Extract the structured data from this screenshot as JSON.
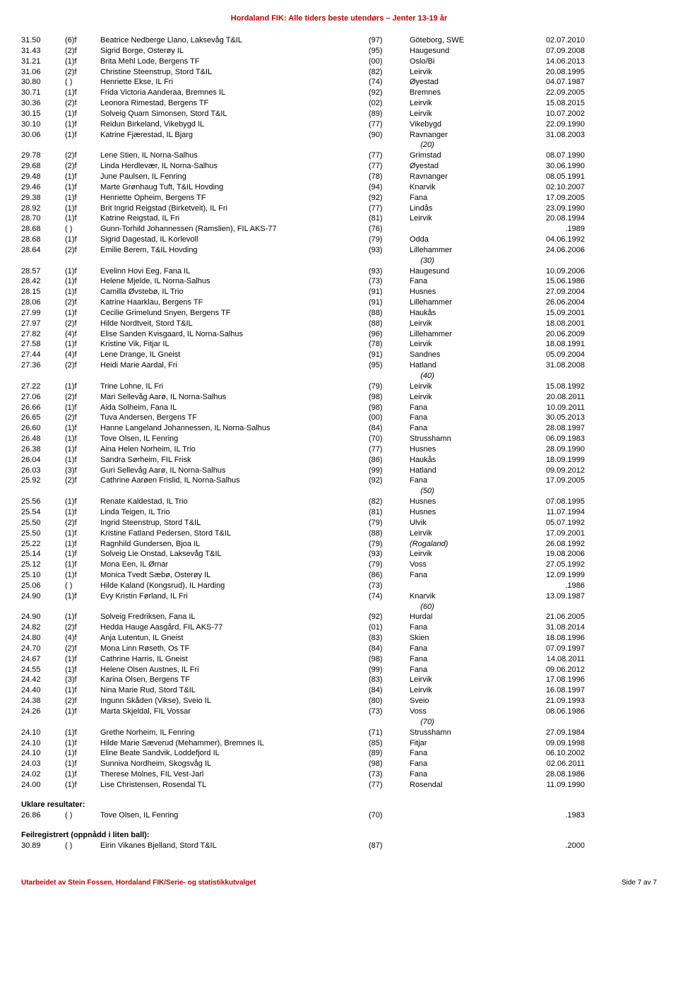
{
  "header": "Hordaland FIK: Alle tiders beste utendørs – Jenter 13-19 år",
  "footer_left": "Utarbeidet av Stein Fossen, Hordaland FIK/Serie- og statistikkutvalget",
  "footer_right": "Side 7 av 7",
  "sections": {
    "unclear": {
      "title": "Uklare resultater:"
    },
    "misreg": {
      "title": "Feilregistrert (oppnådd i liten ball):"
    }
  },
  "rows": [
    {
      "r": "31.50",
      "a": "(6)f",
      "n": "Beatrice Nedberge Llano, Laksevåg T&IL",
      "y": "(97)",
      "p": "Göteborg, SWE",
      "d": "02.07.2010"
    },
    {
      "r": "31.43",
      "a": "(2)f",
      "n": "Sigrid Borge, Osterøy IL",
      "y": "(95)",
      "p": "Haugesund",
      "d": "07.09.2008"
    },
    {
      "r": "31.21",
      "a": "(1)f",
      "n": "Brita Mehl Lode, Bergens TF",
      "y": "(00)",
      "p": "Oslo/Bi",
      "d": "14.06.2013"
    },
    {
      "r": "31.06",
      "a": "(2)f",
      "n": "Christine Steenstrup, Stord T&IL",
      "y": "(82)",
      "p": "Leirvik",
      "d": "20.08.1995"
    },
    {
      "r": "30.80",
      "a": "( )",
      "n": "Henriette Ekse, IL Fri",
      "y": "(74)",
      "p": "Øyestad",
      "d": "04.07.1987"
    },
    {
      "r": "30.71",
      "a": "(1)f",
      "n": "Frida Victoria Aanderaa, Bremnes IL",
      "y": "(92)",
      "p": "Bremnes",
      "d": "22.09.2005"
    },
    {
      "r": "30.36",
      "a": "(2)f",
      "n": "Leonora Rimestad, Bergens TF",
      "y": "(02)",
      "p": "Leirvik",
      "d": "15.08.2015"
    },
    {
      "r": "30.15",
      "a": "(1)f",
      "n": "Solveig Quam Simonsen, Stord T&IL",
      "y": "(89)",
      "p": "Leirvik",
      "d": "10.07.2002"
    },
    {
      "r": "30.10",
      "a": "(1)f",
      "n": "Reidun Birkeland, Vikebygd IL",
      "y": "(77)",
      "p": "Vikebygd",
      "d": "22.09.1990"
    },
    {
      "r": "30.06",
      "a": "(1)f",
      "n": "Katrine Fjærestad, IL Bjarg",
      "y": "(90)",
      "p": "Ravnanger",
      "d": "31.08.2003"
    },
    {
      "marker": "(20)"
    },
    {
      "r": "29.78",
      "a": "(2)f",
      "n": "Lene Stien, IL Norna-Salhus",
      "y": "(77)",
      "p": "Grimstad",
      "d": "08.07.1990"
    },
    {
      "r": "29.68",
      "a": "(2)f",
      "n": "Linda Herdlevær, IL Norna-Salhus",
      "y": "(77)",
      "p": "Øyestad",
      "d": "30.06.1990"
    },
    {
      "r": "29.48",
      "a": "(1)f",
      "n": "June Paulsen, IL Fenring",
      "y": "(78)",
      "p": "Ravnanger",
      "d": "08.05.1991"
    },
    {
      "r": "29.46",
      "a": "(1)f",
      "n": "Marte Grønhaug Tuft, T&IL Hovding",
      "y": "(94)",
      "p": "Knarvik",
      "d": "02.10.2007"
    },
    {
      "r": "29.38",
      "a": "(1)f",
      "n": "Henriette Opheim, Bergens TF",
      "y": "(92)",
      "p": "Fana",
      "d": "17.09.2005"
    },
    {
      "r": "28.92",
      "a": "(1)f",
      "n": "Brit Ingrid Reigstad (Birketveit), IL Fri",
      "y": "(77)",
      "p": "Lindås",
      "d": "23.09.1990"
    },
    {
      "r": "28.70",
      "a": "(1)f",
      "n": "Katrine Reigstad, IL Fri",
      "y": "(81)",
      "p": "Leirvik",
      "d": "20.08.1994"
    },
    {
      "r": "28.68",
      "a": "( )",
      "n": "Gunn-Torhild Johannessen (Ramslien), FIL AKS-77",
      "y": "(76)",
      "p": "",
      "d": ".1989"
    },
    {
      "r": "28.68",
      "a": "(1)f",
      "n": "Sigrid Dagestad, IL Korlevoll",
      "y": "(79)",
      "p": "Odda",
      "d": "04.06.1992"
    },
    {
      "r": "28.64",
      "a": "(2)f",
      "n": "Emilie Berem, T&IL Hovding",
      "y": "(93)",
      "p": "Lillehammer",
      "d": "24.06.2006"
    },
    {
      "marker": "(30)"
    },
    {
      "r": "28.57",
      "a": "(1)f",
      "n": "Evelinn Hovi Eeg, Fana IL",
      "y": "(93)",
      "p": "Haugesund",
      "d": "10.09.2006"
    },
    {
      "r": "28.42",
      "a": "(1)f",
      "n": "Helene Mjelde, IL Norna-Salhus",
      "y": "(73)",
      "p": "Fana",
      "d": "15.06.1986"
    },
    {
      "r": "28.15",
      "a": "(1)f",
      "n": "Camilla Øvstebø, IL Trio",
      "y": "(91)",
      "p": "Husnes",
      "d": "27.09.2004"
    },
    {
      "r": "28.06",
      "a": "(2)f",
      "n": "Katrine Haarklau, Bergens TF",
      "y": "(91)",
      "p": "Lillehammer",
      "d": "26.06.2004"
    },
    {
      "r": "27.99",
      "a": "(1)f",
      "n": "Cecilie Grimelund Snyen, Bergens TF",
      "y": "(88)",
      "p": "Haukås",
      "d": "15.09.2001"
    },
    {
      "r": "27.97",
      "a": "(2)f",
      "n": "Hilde Nordtveit, Stord T&IL",
      "y": "(88)",
      "p": "Leirvik",
      "d": "18.08.2001"
    },
    {
      "r": "27.82",
      "a": "(4)f",
      "n": "Elise Sanden Kvisgaard, IL Norna-Salhus",
      "y": "(96)",
      "p": "Lillehammer",
      "d": "20.06.2009"
    },
    {
      "r": "27.58",
      "a": "(1)f",
      "n": "Kristine Vik, Fitjar IL",
      "y": "(78)",
      "p": "Leirvik",
      "d": "18.08.1991"
    },
    {
      "r": "27.44",
      "a": "(4)f",
      "n": "Lene Drange, IL Gneist",
      "y": "(91)",
      "p": "Sandnes",
      "d": "05.09.2004"
    },
    {
      "r": "27.36",
      "a": "(2)f",
      "n": "Heidi Marie Aardal, Fri",
      "y": "(95)",
      "p": "Hatland",
      "d": "31.08.2008"
    },
    {
      "marker": "(40)"
    },
    {
      "r": "27.22",
      "a": "(1)f",
      "n": "Trine Lohne, IL Fri",
      "y": "(79)",
      "p": "Leirvik",
      "d": "15.08.1992"
    },
    {
      "r": "27.06",
      "a": "(2)f",
      "n": "Mari Sellevåg Aarø, IL Norna-Salhus",
      "y": "(98)",
      "p": "Leirvik",
      "d": "20.08.2011"
    },
    {
      "r": "26.66",
      "a": "(1)f",
      "n": "Aida Solheim, Fana IL",
      "y": "(98)",
      "p": "Fana",
      "d": "10.09.2011"
    },
    {
      "r": "26.65",
      "a": "(2)f",
      "n": "Tuva Andersen, Bergens TF",
      "y": "(00)",
      "p": "Fana",
      "d": "30.05.2013"
    },
    {
      "r": "26.60",
      "a": "(1)f",
      "n": "Hanne Langeland Johannessen, IL Norna-Salhus",
      "y": "(84)",
      "p": "Fana",
      "d": "28.08.1997"
    },
    {
      "r": "26.48",
      "a": "(1)f",
      "n": "Tove Olsen, IL Fenring",
      "y": "(70)",
      "p": "Strusshamn",
      "d": "06.09.1983"
    },
    {
      "r": "26.38",
      "a": "(1)f",
      "n": "Aina Helen Norheim, IL Trio",
      "y": "(77)",
      "p": "Husnes",
      "d": "28.09.1990"
    },
    {
      "r": "26.04",
      "a": "(1)f",
      "n": "Sandra Sørheim, FIL Frisk",
      "y": "(86)",
      "p": "Haukås",
      "d": "18.09.1999"
    },
    {
      "r": "26.03",
      "a": "(3)f",
      "n": "Guri Sellevåg Aarø, IL Norna-Salhus",
      "y": "(99)",
      "p": "Hatland",
      "d": "09.09.2012"
    },
    {
      "r": "25.92",
      "a": "(2)f",
      "n": "Cathrine Aarøen Frislid, IL Norna-Salhus",
      "y": "(92)",
      "p": "Fana",
      "d": "17.09.2005"
    },
    {
      "marker": "(50)"
    },
    {
      "r": "25.56",
      "a": "(1)f",
      "n": "Renate Kaldestad, IL Trio",
      "y": "(82)",
      "p": "Husnes",
      "d": "07.08.1995"
    },
    {
      "r": "25.54",
      "a": "(1)f",
      "n": "Linda Teigen, IL Trio",
      "y": "(81)",
      "p": "Husnes",
      "d": "11.07.1994"
    },
    {
      "r": "25.50",
      "a": "(2)f",
      "n": "Ingrid Steenstrup, Stord T&IL",
      "y": "(79)",
      "p": "Ulvik",
      "d": "05.07.1992"
    },
    {
      "r": "25.50",
      "a": "(1)f",
      "n": "Kristine Fatland Pedersen, Stord T&IL",
      "y": "(88)",
      "p": "Leirvik",
      "d": "17.09.2001"
    },
    {
      "r": "25.22",
      "a": "(1)f",
      "n": "Ragnhild Gundersen, Bjoa IL",
      "y": "(79)",
      "p": "(Rogaland)",
      "d": "26.08.1992",
      "pi": true
    },
    {
      "r": "25.14",
      "a": "(1)f",
      "n": "Solveig Lie Onstad, Laksevåg T&IL",
      "y": "(93)",
      "p": "Leirvik",
      "d": "19.08.2006"
    },
    {
      "r": "25.12",
      "a": "(1)f",
      "n": "Mona Een, IL Ørnar",
      "y": "(79)",
      "p": "Voss",
      "d": "27.05.1992"
    },
    {
      "r": "25.10",
      "a": "(1)f",
      "n": "Monica Tvedt Sæbø, Osterøy IL",
      "y": "(86)",
      "p": "Fana",
      "d": "12.09.1999"
    },
    {
      "r": "25.06",
      "a": "( )",
      "n": "Hilde Kaland (Kongsrud), IL Harding",
      "y": "(73)",
      "p": "",
      "d": ".1986"
    },
    {
      "r": "24.90",
      "a": "(1)f",
      "n": "Evy Kristin Førland, IL Fri",
      "y": "(74)",
      "p": "Knarvik",
      "d": "13.09.1987"
    },
    {
      "marker": "(60)"
    },
    {
      "r": "24.90",
      "a": "(1)f",
      "n": "Solveig Fredriksen, Fana IL",
      "y": "(92)",
      "p": "Hurdal",
      "d": "21.06.2005"
    },
    {
      "r": "24.82",
      "a": "(2)f",
      "n": "Hedda Hauge Aasgård, FIL AKS-77",
      "y": "(01)",
      "p": "Fana",
      "d": "31.08.2014"
    },
    {
      "r": "24.80",
      "a": "(4)f",
      "n": "Anja Lutentun, IL Gneist",
      "y": "(83)",
      "p": "Skien",
      "d": "18.08.1996"
    },
    {
      "r": "24.70",
      "a": "(2)f",
      "n": "Mona Linn Røseth, Os TF",
      "y": "(84)",
      "p": "Fana",
      "d": "07.09.1997"
    },
    {
      "r": "24.67",
      "a": "(1)f",
      "n": "Cathrine Harris, IL Gneist",
      "y": "(98)",
      "p": "Fana",
      "d": "14.08.2011"
    },
    {
      "r": "24.55",
      "a": "(1)f",
      "n": "Helene Olsen Austnes, IL Fri",
      "y": "(99)",
      "p": "Fana",
      "d": "09.06.2012"
    },
    {
      "r": "24.42",
      "a": "(3)f",
      "n": "Karina Olsen, Bergens TF",
      "y": "(83)",
      "p": "Leirvik",
      "d": "17.08.1996"
    },
    {
      "r": "24.40",
      "a": "(1)f",
      "n": "Nina Marie Rud, Stord T&IL",
      "y": "(84)",
      "p": "Leirvik",
      "d": "16.08.1997"
    },
    {
      "r": "24.38",
      "a": "(2)f",
      "n": "Ingunn Skåden (Vikse), Sveio IL",
      "y": "(80)",
      "p": "Sveio",
      "d": "21.09.1993"
    },
    {
      "r": "24.26",
      "a": "(1)f",
      "n": "Marta Skjeldal, FIL Vossar",
      "y": "(73)",
      "p": "Voss",
      "d": "08.06.1986"
    },
    {
      "marker": "(70)"
    },
    {
      "r": "24.10",
      "a": "(1)f",
      "n": "Grethe Norheim, IL Fenring",
      "y": "(71)",
      "p": "Strusshamn",
      "d": "27.09.1984"
    },
    {
      "r": "24.10",
      "a": "(1)f",
      "n": "Hilde Marie Sæverud (Mehammer), Bremnes IL",
      "y": "(85)",
      "p": "Fitjar",
      "d": "09.09.1998"
    },
    {
      "r": "24.10",
      "a": "(1)f",
      "n": "Eline Beate Sandvik, Loddefjord IL",
      "y": "(89)",
      "p": "Fana",
      "d": "06.10.2002"
    },
    {
      "r": "24.03",
      "a": "(1)f",
      "n": "Sunniva Nordheim, Skogsvåg IL",
      "y": "(98)",
      "p": "Fana",
      "d": "02.06.2011"
    },
    {
      "r": "24.02",
      "a": "(1)f",
      "n": "Therese Molnes, FIL Vest-Jarl",
      "y": "(73)",
      "p": "Fana",
      "d": "28.08.1986"
    },
    {
      "r": "24.00",
      "a": "(1)f",
      "n": "Lise Christensen, Rosendal TL",
      "y": "(77)",
      "p": "Rosendal",
      "d": "11.09.1990"
    }
  ],
  "unclear_rows": [
    {
      "r": "26.86",
      "a": "( )",
      "n": "Tove Olsen, IL Fenring",
      "y": "(70)",
      "p": "",
      "d": ".1983"
    }
  ],
  "misreg_rows": [
    {
      "r": "30.89",
      "a": "( )",
      "n": "Eirin Vikanes Bjelland, Stord T&IL",
      "y": "(87)",
      "p": "",
      "d": ".2000"
    }
  ]
}
